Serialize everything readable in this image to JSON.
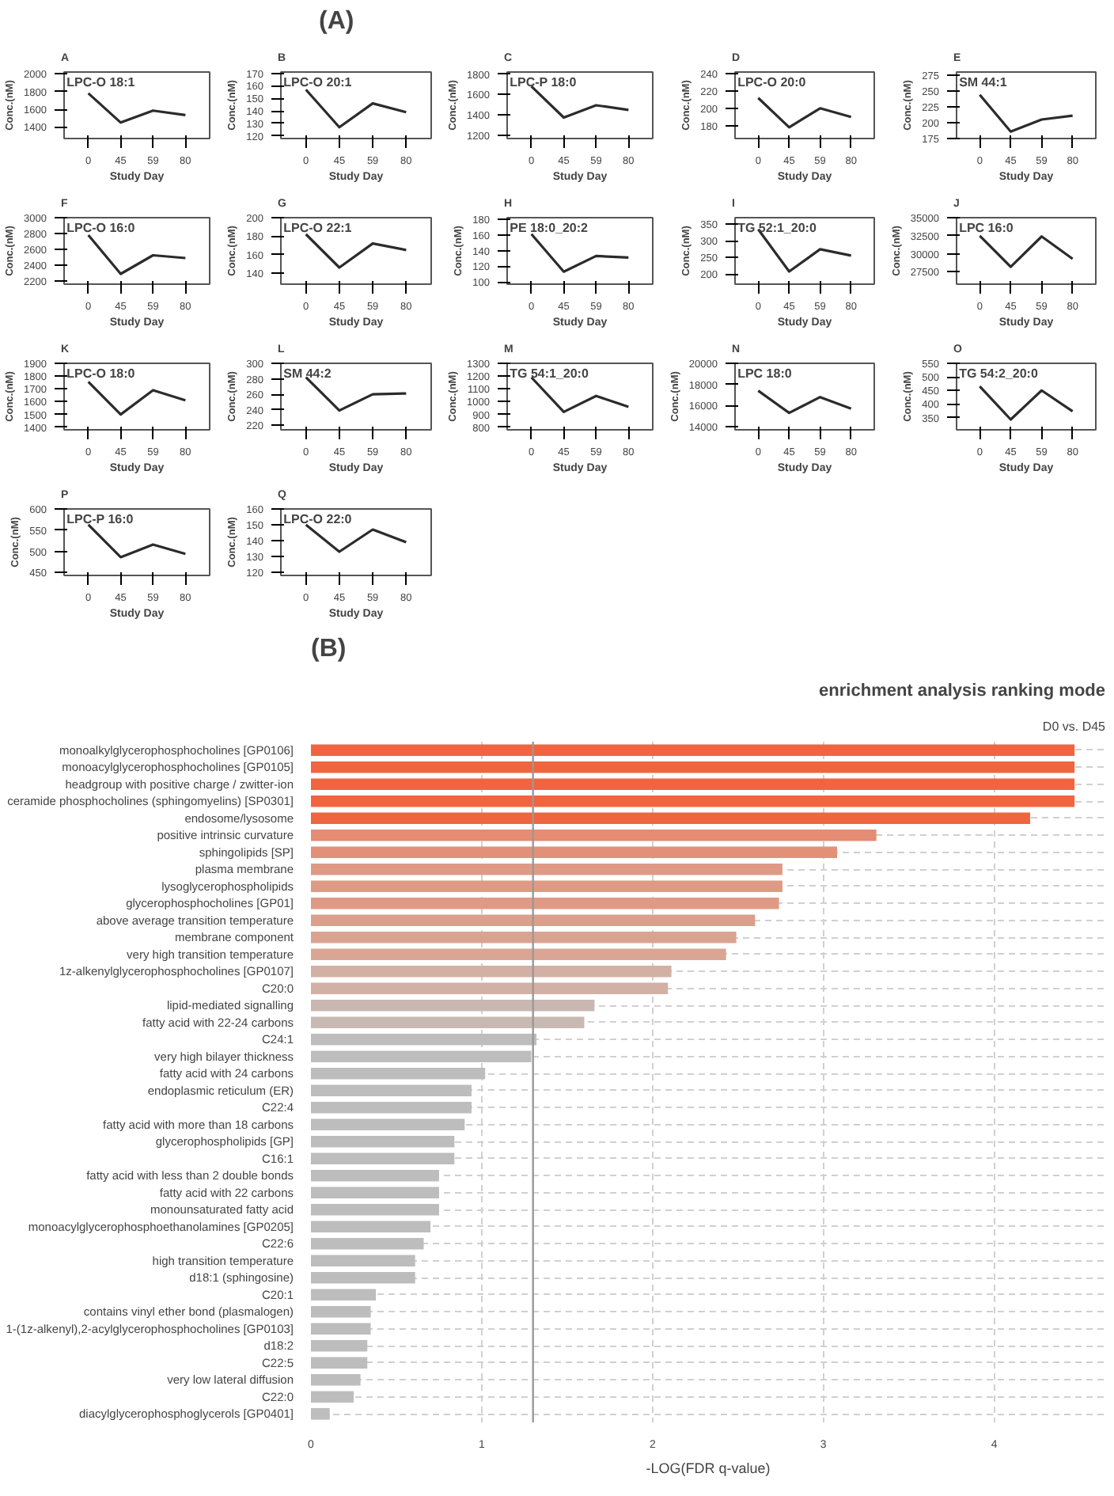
{
  "chart_data": [
    {
      "type": "line",
      "title": "LPC-O 18:1",
      "categories": [
        "0",
        "45",
        "59",
        "80"
      ],
      "xlabel": "Study Day",
      "ylabel": "Conc.(nM)",
      "ylim": [
        1270,
        2020
      ],
      "yticks": [
        1400,
        1600,
        1800,
        2000
      ],
      "series": [
        {
          "color": "#2b2b2b",
          "values": [
            1780,
            1450,
            1585,
            1535
          ]
        }
      ],
      "annotations": [
        "A",
        "(A)"
      ],
      "grid": false
    },
    {
      "type": "line",
      "title": "LPC-O 20:1",
      "categories": [
        "0",
        "45",
        "59",
        "80"
      ],
      "xlabel": "Study Day",
      "ylabel": "Conc.(nM)",
      "ylim": [
        118,
        171
      ],
      "yticks": [
        120,
        130,
        140,
        150,
        160,
        170
      ],
      "series": [
        {
          "color": "#2b2b2b",
          "values": [
            157,
            127,
            146,
            139
          ]
        }
      ],
      "annotations": [
        "B"
      ],
      "grid": false
    },
    {
      "type": "line",
      "title": "LPC-P 18:0",
      "categories": [
        "0",
        "45",
        "59",
        "80"
      ],
      "xlabel": "Study Day",
      "ylabel": "Conc.(nM)",
      "ylim": [
        1170,
        1820
      ],
      "yticks": [
        1200,
        1400,
        1600,
        1800
      ],
      "series": [
        {
          "color": "#2b2b2b",
          "values": [
            1680,
            1375,
            1495,
            1450
          ]
        }
      ],
      "annotations": [
        "C"
      ],
      "grid": false
    },
    {
      "type": "line",
      "title": "LPC-O 20:0",
      "categories": [
        "0",
        "45",
        "59",
        "80"
      ],
      "xlabel": "Study Day",
      "ylabel": "Conc.(nM)",
      "ylim": [
        165,
        242
      ],
      "yticks": [
        180,
        200,
        220,
        240
      ],
      "series": [
        {
          "color": "#2b2b2b",
          "values": [
            212,
            178,
            200,
            190
          ]
        }
      ],
      "annotations": [
        "D"
      ],
      "grid": false
    },
    {
      "type": "line",
      "title": "SM 44:1",
      "categories": [
        "0",
        "45",
        "59",
        "80"
      ],
      "xlabel": "Study Day",
      "ylabel": "Conc.(nM)",
      "ylim": [
        175,
        280
      ],
      "yticks": [
        175,
        200,
        225,
        250,
        275
      ],
      "series": [
        {
          "color": "#2b2b2b",
          "values": [
            244,
            186,
            205,
            211
          ]
        }
      ],
      "annotations": [
        "E"
      ],
      "grid": false
    },
    {
      "type": "line",
      "title": "LPC-O 16:0",
      "categories": [
        "0",
        "45",
        "59",
        "80"
      ],
      "xlabel": "Study Day",
      "ylabel": "Conc.(nM)",
      "ylim": [
        2160,
        3000
      ],
      "yticks": [
        2200,
        2400,
        2600,
        2800,
        3000
      ],
      "series": [
        {
          "color": "#2b2b2b",
          "values": [
            2780,
            2290,
            2525,
            2490
          ]
        }
      ],
      "annotations": [
        "F"
      ],
      "grid": false
    },
    {
      "type": "line",
      "title": "LPC-O 22:1",
      "categories": [
        "0",
        "45",
        "59",
        "80"
      ],
      "xlabel": "Study Day",
      "ylabel": "Conc.(nM)",
      "ylim": [
        128,
        200
      ],
      "yticks": [
        140,
        160,
        180,
        200
      ],
      "series": [
        {
          "color": "#2b2b2b",
          "values": [
            182,
            146,
            172,
            165
          ]
        }
      ],
      "annotations": [
        "G"
      ],
      "grid": false
    },
    {
      "type": "line",
      "title": "PE 18:0_20:2",
      "categories": [
        "0",
        "45",
        "59",
        "80"
      ],
      "xlabel": "Study Day",
      "ylabel": "Conc.(nM)",
      "ylim": [
        97,
        182
      ],
      "yticks": [
        100,
        120,
        140,
        160,
        180
      ],
      "series": [
        {
          "color": "#2b2b2b",
          "values": [
            161,
            113,
            133,
            131
          ]
        }
      ],
      "annotations": [
        "H"
      ],
      "grid": false
    },
    {
      "type": "line",
      "title": "TG 52:1_20:0",
      "categories": [
        "0",
        "45",
        "59",
        "80"
      ],
      "xlabel": "Study Day",
      "ylabel": "Conc.(nM)",
      "ylim": [
        170,
        370
      ],
      "yticks": [
        200,
        250,
        300,
        350
      ],
      "series": [
        {
          "color": "#2b2b2b",
          "values": [
            335,
            208,
            275,
            256
          ]
        }
      ],
      "annotations": [
        "I"
      ],
      "grid": false
    },
    {
      "type": "line",
      "title": "LPC 16:0",
      "categories": [
        "0",
        "45",
        "59",
        "80"
      ],
      "xlabel": "Study Day",
      "ylabel": "Conc.(nM)",
      "ylim": [
        25800,
        35000
      ],
      "yticks": [
        27500,
        30000,
        32500,
        35000
      ],
      "series": [
        {
          "color": "#2b2b2b",
          "values": [
            32500,
            28200,
            32400,
            29300
          ]
        }
      ],
      "annotations": [
        "J"
      ],
      "grid": false
    },
    {
      "type": "line",
      "title": "LPC-O 18:0",
      "categories": [
        "0",
        "45",
        "59",
        "80"
      ],
      "xlabel": "Study Day",
      "ylabel": "Conc.(nM)",
      "ylim": [
        1380,
        1900
      ],
      "yticks": [
        1400,
        1500,
        1600,
        1700,
        1800,
        1900
      ],
      "series": [
        {
          "color": "#2b2b2b",
          "values": [
            1755,
            1500,
            1690,
            1610
          ]
        }
      ],
      "annotations": [
        "K"
      ],
      "grid": false
    },
    {
      "type": "line",
      "title": "SM 44:2",
      "categories": [
        "0",
        "45",
        "59",
        "80"
      ],
      "xlabel": "Study Day",
      "ylabel": "Conc.(nM)",
      "ylim": [
        214,
        300
      ],
      "yticks": [
        220,
        240,
        260,
        280,
        300
      ],
      "series": [
        {
          "color": "#2b2b2b",
          "values": [
            282,
            239,
            260,
            261
          ]
        }
      ],
      "annotations": [
        "L"
      ],
      "grid": false
    },
    {
      "type": "line",
      "title": "TG 54:1_20:0",
      "categories": [
        "0",
        "45",
        "59",
        "80"
      ],
      "xlabel": "Study Day",
      "ylabel": "Conc.(nM)",
      "ylim": [
        780,
        1300
      ],
      "yticks": [
        800,
        900,
        1000,
        1100,
        1200,
        1300
      ],
      "series": [
        {
          "color": "#2b2b2b",
          "values": [
            1190,
            920,
            1045,
            960
          ]
        }
      ],
      "annotations": [
        "M"
      ],
      "grid": false
    },
    {
      "type": "line",
      "title": "LPC 18:0",
      "categories": [
        "0",
        "45",
        "59",
        "80"
      ],
      "xlabel": "Study Day",
      "ylabel": "Conc.(nM)",
      "ylim": [
        13700,
        20000
      ],
      "yticks": [
        14000,
        16000,
        18000,
        20000
      ],
      "series": [
        {
          "color": "#2b2b2b",
          "values": [
            17400,
            15300,
            16800,
            15700
          ]
        }
      ],
      "annotations": [
        "N"
      ],
      "grid": false
    },
    {
      "type": "line",
      "title": "TG 54:2_20:0",
      "categories": [
        "0",
        "45",
        "59",
        "80"
      ],
      "xlabel": "Study Day",
      "ylabel": "Conc.(nM)",
      "ylim": [
        305,
        550
      ],
      "yticks": [
        350,
        400,
        450,
        500,
        550
      ],
      "series": [
        {
          "color": "#2b2b2b",
          "values": [
            465,
            343,
            450,
            373
          ]
        }
      ],
      "annotations": [
        "O"
      ],
      "grid": false
    },
    {
      "type": "line",
      "title": "LPC-P 16:0",
      "categories": [
        "0",
        "45",
        "59",
        "80"
      ],
      "xlabel": "Study Day",
      "ylabel": "Conc.(nM)",
      "ylim": [
        443,
        600
      ],
      "yticks": [
        450,
        500,
        550,
        600
      ],
      "series": [
        {
          "color": "#2b2b2b",
          "values": [
            563,
            486,
            516,
            494
          ]
        }
      ],
      "annotations": [
        "P"
      ],
      "grid": false
    },
    {
      "type": "line",
      "title": "LPC-O 22:0",
      "categories": [
        "0",
        "45",
        "59",
        "80"
      ],
      "xlabel": "Study Day",
      "ylabel": "Conc.(nM)",
      "ylim": [
        118,
        160
      ],
      "yticks": [
        120,
        130,
        140,
        150,
        160
      ],
      "series": [
        {
          "color": "#2b2b2b",
          "values": [
            150,
            133,
            147,
            139
          ]
        }
      ],
      "annotations": [
        "Q"
      ],
      "grid": false
    },
    {
      "type": "bar",
      "orientation": "horizontal",
      "title": "enrichment analysis ranking mode",
      "subtitle": "D0 vs. D45",
      "xlabel": "-LOG(FDR q-value)",
      "xlim": [
        0,
        4.65
      ],
      "xticks": [
        0,
        1,
        2,
        3,
        4
      ],
      "grid": true,
      "annotations": [
        "(B)"
      ],
      "ref_lines": [
        {
          "axis": "x",
          "value": 1.3,
          "color": "#999999"
        }
      ],
      "categories": [
        "monoalkylglycerophosphocholines [GP0106]",
        "monoacylglycerophosphocholines [GP0105]",
        "headgroup with positive charge / zwitter-ion",
        "ceramide phosphocholines (sphingomyelins) [SP0301]",
        "endosome/lysosome",
        "positive intrinsic curvature",
        "sphingolipids [SP]",
        "plasma membrane",
        "lysoglycerophospholipids",
        "glycerophosphocholines [GP01]",
        "above average transition temperature",
        "membrane component",
        "very high transition temperature",
        "1z-alkenylglycerophosphocholines [GP0107]",
        "C20:0",
        "lipid-mediated signalling",
        "fatty acid with 22-24 carbons",
        "C24:1",
        "very high bilayer thickness",
        "fatty acid with 24 carbons",
        "endoplasmic reticulum (ER)",
        "C22:4",
        "fatty acid with more than 18 carbons",
        "glycerophospholipids [GP]",
        "C16:1",
        "fatty acid with less than 2 double bonds",
        "fatty acid with 22 carbons",
        "monounsaturated fatty acid",
        "monoacylglycerophosphoethanolamines [GP0205]",
        "C22:6",
        "high transition temperature",
        "d18:1 (sphingosine)",
        "C20:1",
        "contains vinyl ether bond (plasmalogen)",
        "1-(1z-alkenyl),2-acylglycerophosphocholines [GP0103]",
        "d18:2",
        "C22:5",
        "very low lateral diffusion",
        "C22:0",
        "diacylglycerophosphoglycerols [GP0401]"
      ],
      "values": [
        4.47,
        4.47,
        4.47,
        4.47,
        4.21,
        3.31,
        3.08,
        2.76,
        2.76,
        2.74,
        2.6,
        2.49,
        2.43,
        2.11,
        2.09,
        1.66,
        1.6,
        1.32,
        1.29,
        1.02,
        0.94,
        0.94,
        0.9,
        0.84,
        0.84,
        0.75,
        0.75,
        0.75,
        0.7,
        0.66,
        0.61,
        0.61,
        0.38,
        0.35,
        0.35,
        0.33,
        0.33,
        0.29,
        0.25,
        0.11
      ],
      "colors": [
        "#f0653f",
        "#f0653f",
        "#f0653f",
        "#f0653f",
        "#f0653f",
        "#e48c74",
        "#e39079",
        "#df9a86",
        "#df9a86",
        "#df9a86",
        "#dc9f8c",
        "#daa391",
        "#d9a696",
        "#d2b0a4",
        "#d2b0a4",
        "#c9b8b1",
        "#c8b9b3",
        "#bdbdbd",
        "#bdbdbd",
        "#bdbdbd",
        "#bdbdbd",
        "#bdbdbd",
        "#bdbdbd",
        "#bdbdbd",
        "#bdbdbd",
        "#bdbdbd",
        "#bdbdbd",
        "#bdbdbd",
        "#bdbdbd",
        "#bdbdbd",
        "#bdbdbd",
        "#bdbdbd",
        "#bdbdbd",
        "#bdbdbd",
        "#bdbdbd",
        "#bdbdbd",
        "#bdbdbd",
        "#bdbdbd",
        "#bdbdbd",
        "#bdbdbd"
      ]
    }
  ]
}
